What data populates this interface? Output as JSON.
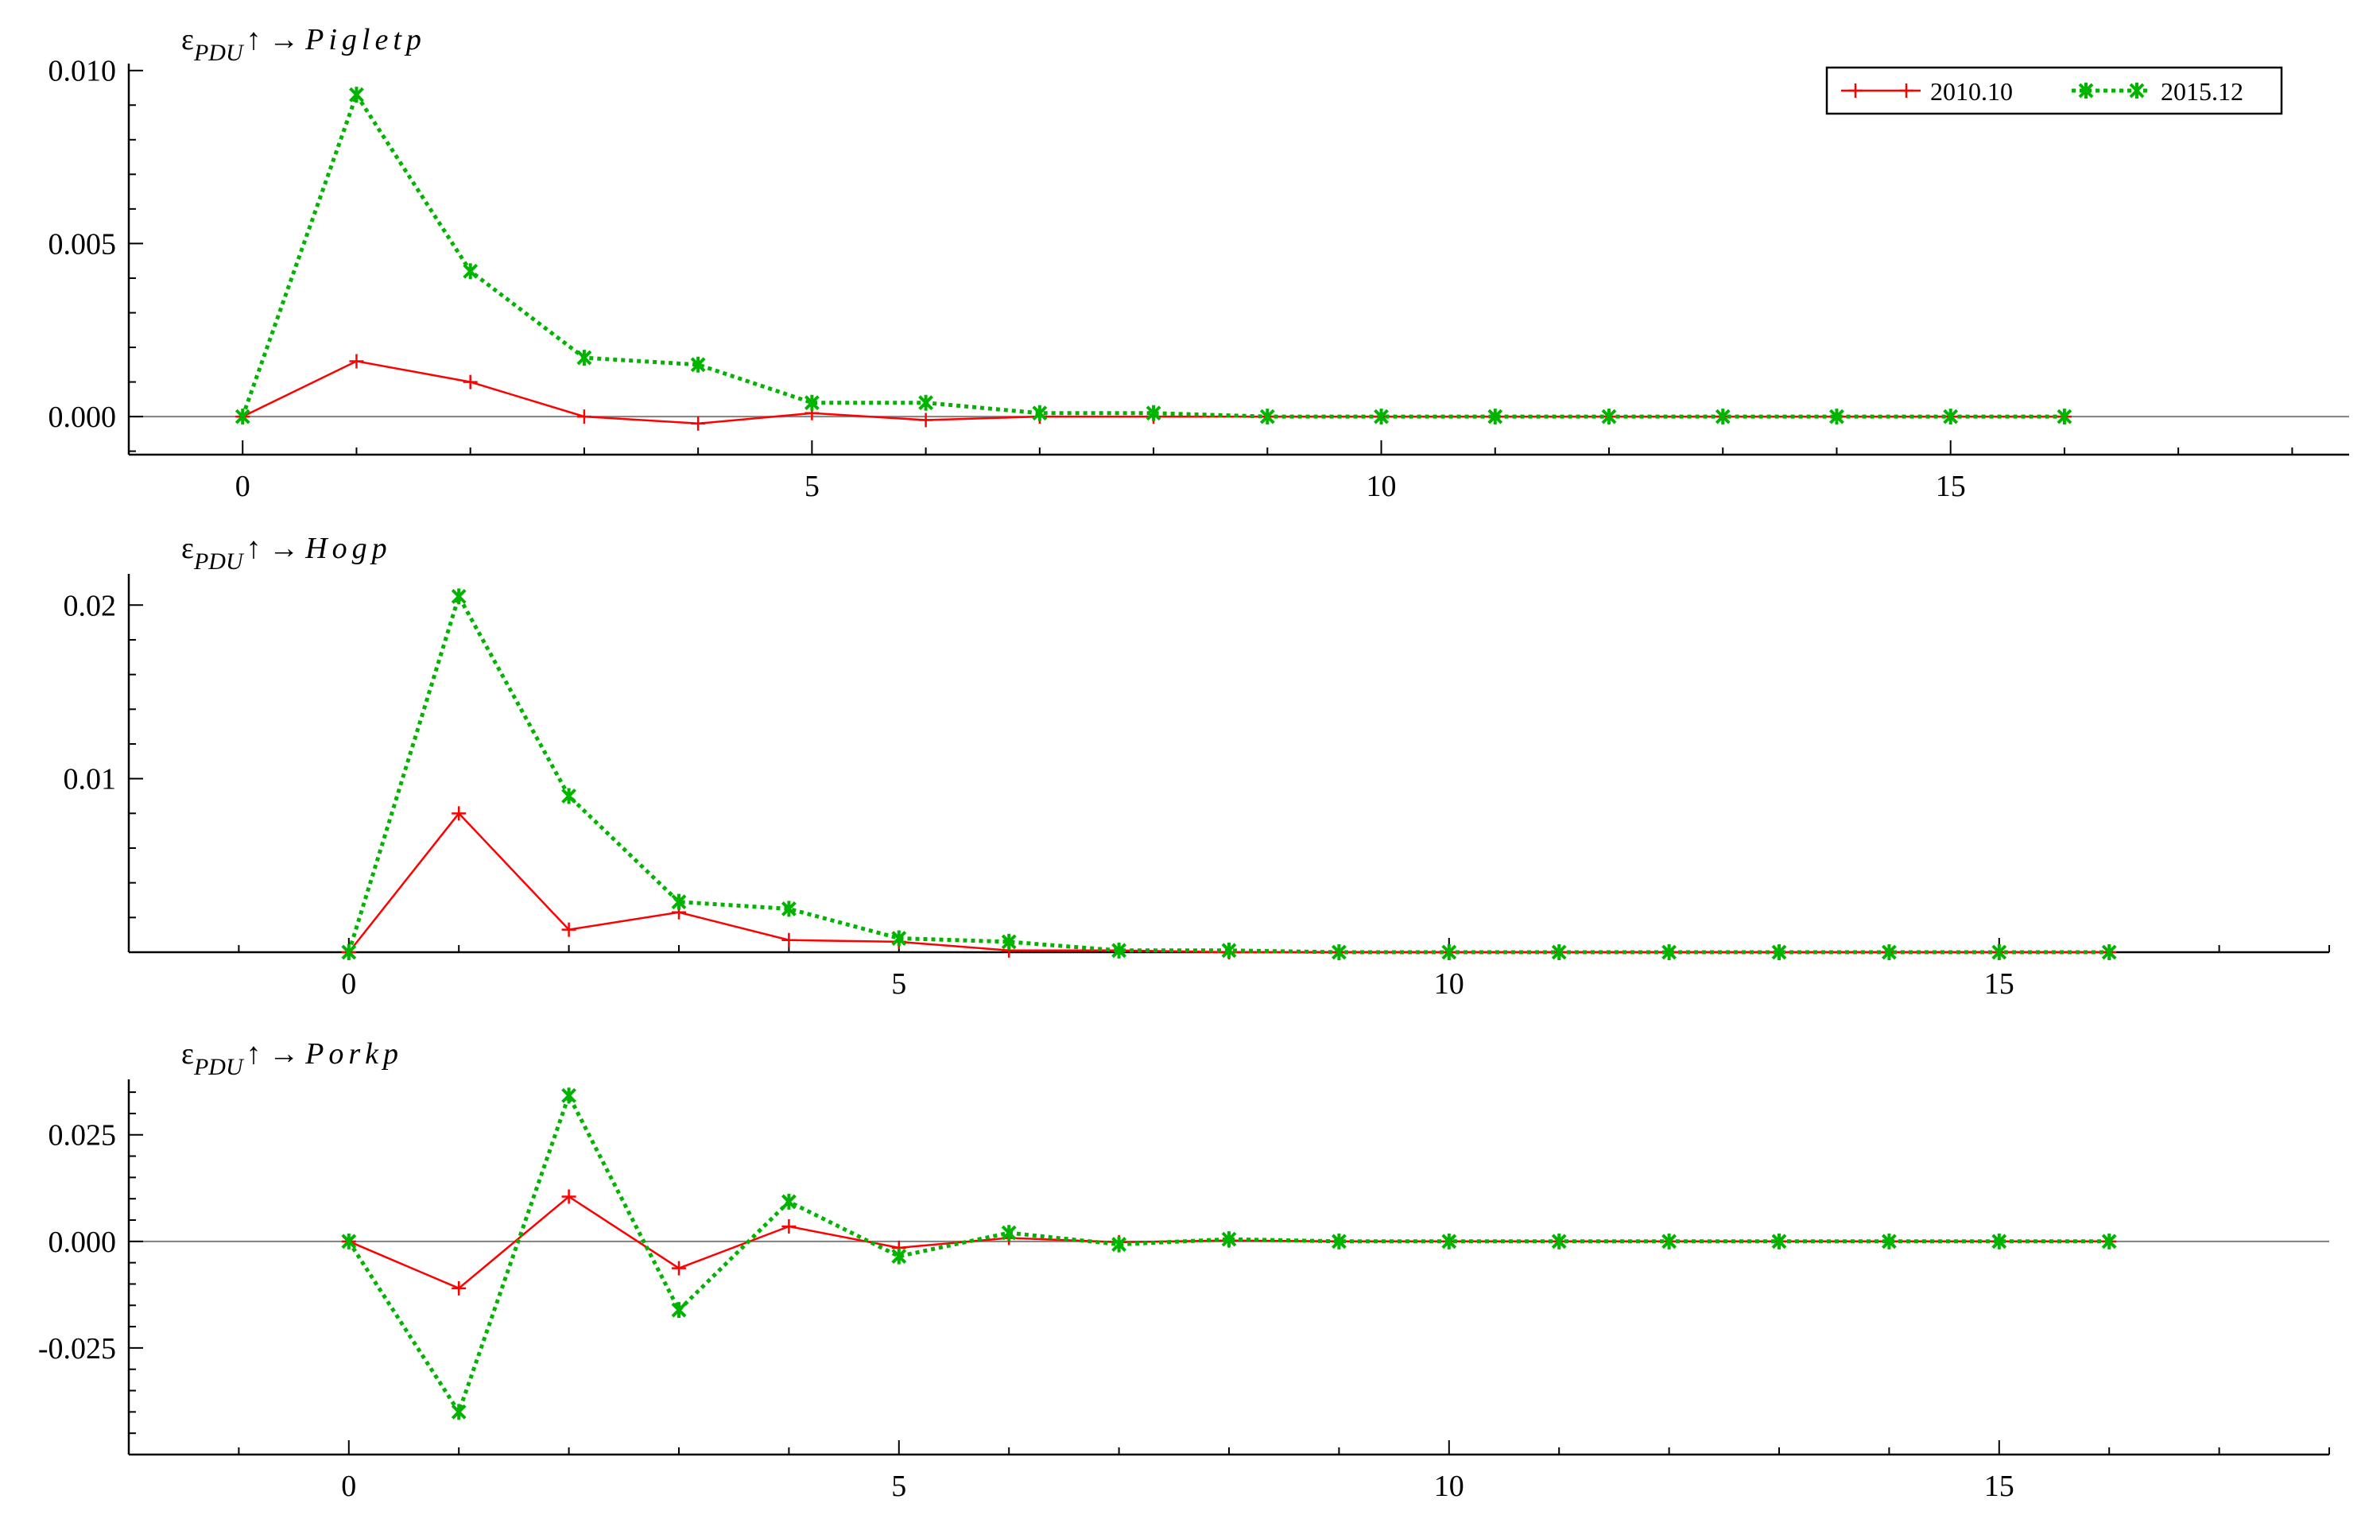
{
  "chart_data": [
    {
      "type": "line",
      "title": {
        "shock": "ε",
        "shock_sub": "PDU",
        "arrow": "↑ →",
        "target": "Pigletp"
      },
      "x": [
        0,
        1,
        2,
        3,
        4,
        5,
        6,
        7,
        8,
        9,
        10,
        11,
        12,
        13,
        14,
        15,
        16
      ],
      "xlim": [
        -1,
        18.5
      ],
      "ylim": [
        -0.0011,
        0.0102
      ],
      "x_ticks": [
        0,
        5,
        10,
        15
      ],
      "y_ticks": [
        0,
        0.005,
        0.01
      ],
      "y_tick_labels": [
        "0.000",
        "0.005",
        "0.010"
      ],
      "zero_line": true,
      "legend_position": "top-right",
      "series": [
        {
          "name": "2010.10",
          "color": "#ff0000",
          "style": "solid",
          "marker": "plus",
          "values": [
            0,
            0.0016,
            0.001,
            0.0,
            -0.0002,
            0.0001,
            -0.0001,
            0.0,
            0.0,
            0,
            0,
            0,
            0,
            0,
            0,
            0,
            0
          ]
        },
        {
          "name": "2015.12",
          "color": "#00b400",
          "style": "dotted",
          "marker": "star",
          "values": [
            0,
            0.0093,
            0.0042,
            0.0017,
            0.0015,
            0.0004,
            0.0004,
            0.0001,
            0.0001,
            0,
            0,
            0,
            0,
            0,
            0,
            0,
            0
          ]
        }
      ]
    },
    {
      "type": "line",
      "title": {
        "shock": "ε",
        "shock_sub": "PDU",
        "arrow": "↑ →",
        "target": "Hogp"
      },
      "x": [
        0,
        1,
        2,
        3,
        4,
        5,
        6,
        7,
        8,
        9,
        10,
        11,
        12,
        13,
        14,
        15,
        16
      ],
      "xlim": [
        -2,
        18
      ],
      "ylim": [
        0,
        0.0218
      ],
      "x_ticks": [
        0,
        5,
        10,
        15
      ],
      "y_ticks": [
        0.01,
        0.02
      ],
      "y_tick_labels": [
        "0.01",
        "0.02"
      ],
      "zero_line": false,
      "series": [
        {
          "name": "2010.10",
          "color": "#ff0000",
          "style": "solid",
          "marker": "plus",
          "values": [
            0,
            0.008,
            0.0013,
            0.0023,
            0.0007,
            0.0006,
            0.0001,
            0.0001,
            0,
            0,
            0,
            0,
            0,
            0,
            0,
            0,
            0
          ]
        },
        {
          "name": "2015.12",
          "color": "#00b400",
          "style": "dotted",
          "marker": "star",
          "values": [
            0,
            0.0205,
            0.009,
            0.0029,
            0.0025,
            0.0008,
            0.0006,
            0.0001,
            0.0001,
            0,
            0,
            0,
            0,
            0,
            0,
            0,
            0
          ]
        }
      ]
    },
    {
      "type": "line",
      "title": {
        "shock": "ε",
        "shock_sub": "PDU",
        "arrow": "↑ →",
        "target": "Porkp"
      },
      "x": [
        0,
        1,
        2,
        3,
        4,
        5,
        6,
        7,
        8,
        9,
        10,
        11,
        12,
        13,
        14,
        15,
        16
      ],
      "xlim": [
        -2,
        18
      ],
      "ylim": [
        -0.05,
        0.038
      ],
      "x_ticks": [
        0,
        5,
        10,
        15
      ],
      "y_ticks": [
        -0.025,
        0,
        0.025
      ],
      "y_tick_labels": [
        "-0.025",
        "0.000",
        "0.025"
      ],
      "zero_line": true,
      "series": [
        {
          "name": "2010.10",
          "color": "#ff0000",
          "style": "solid",
          "marker": "plus",
          "values": [
            0,
            -0.011,
            0.0105,
            -0.0063,
            0.0035,
            -0.0015,
            0.0008,
            -0.0002,
            0.0002,
            0,
            0,
            0,
            0,
            0,
            0,
            0,
            0
          ]
        },
        {
          "name": "2015.12",
          "color": "#00b400",
          "style": "dotted",
          "marker": "star",
          "values": [
            0,
            -0.04,
            0.0342,
            -0.0161,
            0.0093,
            -0.0035,
            0.002,
            -0.0007,
            0.0005,
            0,
            0,
            0,
            0,
            0,
            0,
            0,
            0
          ]
        }
      ]
    }
  ]
}
